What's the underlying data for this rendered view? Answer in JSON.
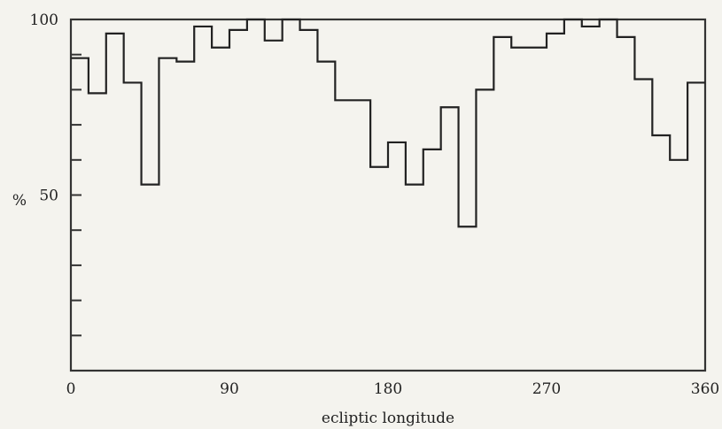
{
  "chart_data": {
    "type": "line",
    "style": "step",
    "title": "",
    "xlabel": "ecliptic longitude",
    "ylabel": "%",
    "xlim": [
      0,
      360
    ],
    "ylim": [
      0,
      100
    ],
    "x_tick_labels": [
      "0",
      "90",
      "180",
      "270",
      "360"
    ],
    "x_tick_values": [
      0,
      90,
      180,
      270,
      360
    ],
    "y_tick_labels": [
      "50",
      "100"
    ],
    "y_tick_values": [
      50,
      100
    ],
    "y_minor_ticks": [
      10,
      20,
      30,
      40,
      50,
      60,
      70,
      80,
      90
    ],
    "bin_width": 10,
    "bins_start": [
      0,
      10,
      20,
      30,
      40,
      50,
      60,
      70,
      80,
      90,
      100,
      110,
      120,
      130,
      140,
      150,
      160,
      170,
      180,
      190,
      200,
      210,
      220,
      230,
      240,
      250,
      260,
      270,
      280,
      290,
      300,
      310,
      320,
      330,
      340,
      350
    ],
    "values": [
      89,
      79,
      96,
      82,
      53,
      89,
      88,
      98,
      92,
      97,
      100,
      94,
      100,
      97,
      88,
      77,
      77,
      58,
      65,
      53,
      63,
      75,
      41,
      80,
      95,
      92,
      92,
      96,
      100,
      98,
      100,
      95,
      83,
      67,
      60,
      82
    ],
    "grid": false,
    "legend": "none"
  }
}
